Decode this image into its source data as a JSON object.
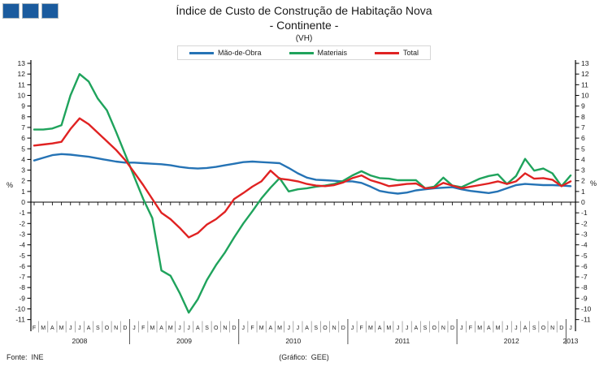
{
  "header": {
    "title_line1": "Índice de Custo de Construção de Habitação Nova",
    "title_line2": "- Continente -",
    "title_line3": "(VH)"
  },
  "logo": {
    "square_count": 3,
    "square_color": "#1a5b9e"
  },
  "footer": {
    "source": "Fonte:  INE",
    "credit": "(Gráfico:  GEE)"
  },
  "chart_data": {
    "type": "line",
    "unit": "%",
    "ylim": [
      -11,
      13
    ],
    "ytick_step": 1,
    "grid": false,
    "legend_position": "top-center",
    "axis_color": "#000000",
    "x_months": [
      "F",
      "M",
      "A",
      "M",
      "J",
      "J",
      "A",
      "S",
      "O",
      "N",
      "D",
      "J",
      "F",
      "M",
      "A",
      "M",
      "J",
      "J",
      "A",
      "S",
      "O",
      "N",
      "D",
      "J",
      "F",
      "M",
      "A",
      "M",
      "J",
      "J",
      "A",
      "S",
      "O",
      "N",
      "D",
      "J",
      "F",
      "M",
      "A",
      "M",
      "J",
      "J",
      "A",
      "S",
      "O",
      "N",
      "D",
      "J",
      "F",
      "M",
      "A",
      "M",
      "J",
      "J",
      "A",
      "S",
      "O",
      "N",
      "D",
      "J"
    ],
    "years": [
      {
        "label": "2008",
        "start": 0,
        "count": 11
      },
      {
        "label": "2009",
        "start": 11,
        "count": 12
      },
      {
        "label": "2010",
        "start": 23,
        "count": 12
      },
      {
        "label": "2011",
        "start": 35,
        "count": 12
      },
      {
        "label": "2012",
        "start": 47,
        "count": 12
      },
      {
        "label": "2013",
        "start": 59,
        "count": 1
      }
    ],
    "series": [
      {
        "name": "Mão-de-Obra",
        "color": "#2573b5",
        "values": [
          3.9,
          4.15,
          4.4,
          4.5,
          4.45,
          4.35,
          4.25,
          4.1,
          3.95,
          3.8,
          3.7,
          3.7,
          3.65,
          3.6,
          3.55,
          3.45,
          3.3,
          3.2,
          3.15,
          3.2,
          3.3,
          3.45,
          3.6,
          3.75,
          3.8,
          3.75,
          3.7,
          3.65,
          3.2,
          2.7,
          2.3,
          2.1,
          2.05,
          2.0,
          1.95,
          1.95,
          1.8,
          1.45,
          1.05,
          0.9,
          0.8,
          0.9,
          1.1,
          1.2,
          1.3,
          1.35,
          1.4,
          1.2,
          1.05,
          0.95,
          0.85,
          1.0,
          1.3,
          1.6,
          1.7,
          1.65,
          1.6,
          1.6,
          1.55,
          1.5
        ]
      },
      {
        "name": "Materiais",
        "color": "#1fa35c",
        "values": [
          6.8,
          6.8,
          6.9,
          7.2,
          10.0,
          12.0,
          11.3,
          9.7,
          8.6,
          6.6,
          4.5,
          2.4,
          0.3,
          -1.5,
          -6.4,
          -6.9,
          -8.5,
          -10.35,
          -9.1,
          -7.3,
          -5.9,
          -4.7,
          -3.3,
          -2.0,
          -0.85,
          0.35,
          1.35,
          2.25,
          1.0,
          1.2,
          1.3,
          1.45,
          1.55,
          1.7,
          2.0,
          2.5,
          2.9,
          2.5,
          2.25,
          2.2,
          2.05,
          2.05,
          2.05,
          1.3,
          1.45,
          2.3,
          1.55,
          1.4,
          1.8,
          2.2,
          2.45,
          2.6,
          1.7,
          2.45,
          4.05,
          2.95,
          3.15,
          2.7,
          1.5,
          2.5
        ]
      },
      {
        "name": "Total",
        "color": "#e02222",
        "values": [
          5.3,
          5.4,
          5.5,
          5.65,
          6.85,
          7.85,
          7.3,
          6.5,
          5.7,
          4.9,
          3.95,
          2.8,
          1.6,
          0.3,
          -1.0,
          -1.6,
          -2.4,
          -3.3,
          -2.9,
          -2.1,
          -1.6,
          -0.9,
          0.3,
          0.85,
          1.45,
          1.95,
          2.95,
          2.2,
          2.1,
          1.95,
          1.7,
          1.55,
          1.5,
          1.6,
          1.85,
          2.25,
          2.5,
          2.05,
          1.8,
          1.5,
          1.6,
          1.7,
          1.75,
          1.3,
          1.35,
          1.8,
          1.55,
          1.3,
          1.45,
          1.6,
          1.75,
          1.95,
          1.7,
          1.95,
          2.7,
          2.2,
          2.25,
          2.1,
          1.5,
          1.95
        ]
      }
    ]
  }
}
